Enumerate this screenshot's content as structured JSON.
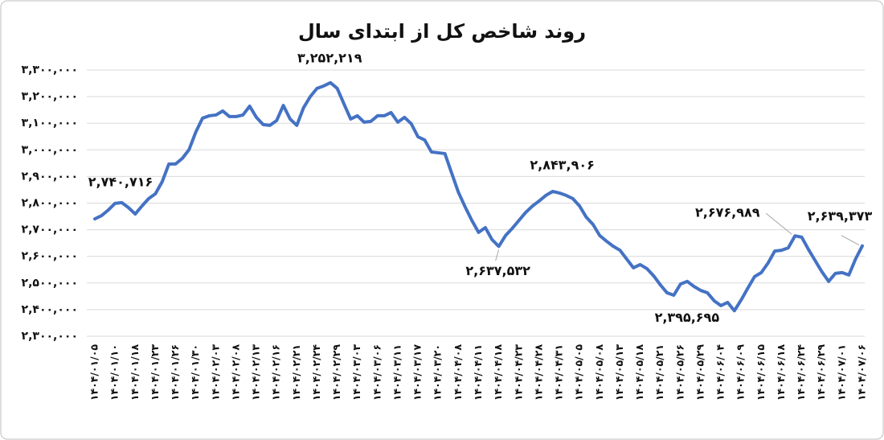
{
  "chart_data": {
    "type": "line",
    "title": "روند شاخص کل از ابتدای سال",
    "color": "#4472c4",
    "grid": true,
    "ylim": [
      2300000,
      3300000
    ],
    "yticks": [
      {
        "value": 2300000,
        "label": "۲,۳۰۰,۰۰۰"
      },
      {
        "value": 2400000,
        "label": "۲,۴۰۰,۰۰۰"
      },
      {
        "value": 2500000,
        "label": "۲,۵۰۰,۰۰۰"
      },
      {
        "value": 2600000,
        "label": "۲,۶۰۰,۰۰۰"
      },
      {
        "value": 2700000,
        "label": "۲,۷۰۰,۰۰۰"
      },
      {
        "value": 2800000,
        "label": "۲,۸۰۰,۰۰۰"
      },
      {
        "value": 2900000,
        "label": "۲,۹۰۰,۰۰۰"
      },
      {
        "value": 3000000,
        "label": "۳,۰۰۰,۰۰۰"
      },
      {
        "value": 3100000,
        "label": "۳,۱۰۰,۰۰۰"
      },
      {
        "value": 3200000,
        "label": "۳,۲۰۰,۰۰۰"
      },
      {
        "value": 3300000,
        "label": "۳,۳۰۰,۰۰۰"
      }
    ],
    "categories": [
      "۱۴۰۴/۰۱/۰۵",
      null,
      null,
      "۱۴۰۴/۰۱/۱۰",
      null,
      null,
      "۱۴۰۴/۰۱/۱۸",
      null,
      null,
      "۱۴۰۴/۰۱/۲۳",
      null,
      null,
      "۱۴۰۴/۰۱/۲۶",
      null,
      null,
      "۱۴۰۴/۰۱/۳۰",
      null,
      null,
      "۱۴۰۴/۰۲/۰۳",
      null,
      null,
      "۱۴۰۴/۰۲/۰۸",
      null,
      null,
      "۱۴۰۴/۰۲/۱۳",
      null,
      null,
      "۱۴۰۴/۰۲/۱۶",
      null,
      null,
      "۱۴۰۴/۰۲/۲۱",
      null,
      null,
      "۱۴۰۴/۰۲/۲۴",
      null,
      null,
      "۱۴۰۴/۰۲/۲۹",
      null,
      null,
      "۱۴۰۴/۰۳/۰۳",
      null,
      null,
      "۱۴۰۴/۰۳/۰۶",
      null,
      null,
      "۱۴۰۴/۰۳/۱۱",
      null,
      null,
      "۱۴۰۴/۰۳/۱۷",
      null,
      null,
      "۱۴۰۴/۰۳/۲۰",
      null,
      null,
      "۱۴۰۴/۰۴/۰۸",
      null,
      null,
      "۱۴۰۴/۰۴/۱۱",
      null,
      null,
      "۱۴۰۴/۰۴/۱۸",
      null,
      null,
      "۱۴۰۴/۰۴/۲۳",
      null,
      null,
      "۱۴۰۴/۰۴/۲۸",
      null,
      null,
      "۱۴۰۴/۰۴/۳۱",
      null,
      null,
      "۱۴۰۴/۰۵/۰۵",
      null,
      null,
      "۱۴۰۴/۰۵/۰۸",
      null,
      null,
      "۱۴۰۴/۰۵/۱۳",
      null,
      null,
      "۱۴۰۴/۰۵/۱۸",
      null,
      null,
      "۱۴۰۴/۰۵/۲۱",
      null,
      null,
      "۱۴۰۴/۰۵/۲۶",
      null,
      null,
      "۱۴۰۴/۰۵/۲۹",
      null,
      null,
      "۱۴۰۴/۰۶/۰۴",
      null,
      null,
      "۱۴۰۴/۰۶/۰۹",
      null,
      null,
      "۱۴۰۴/۰۶/۱۵",
      null,
      null,
      "۱۴۰۴/۰۶/۱۸",
      null,
      null,
      "۱۴۰۴/۰۶/۲۴",
      null,
      null,
      "۱۴۰۴/۰۶/۲۹",
      null,
      null,
      "۱۴۰۴/۰۷/۰۱",
      null,
      null,
      "۱۴۰۴/۰۷/۰۶"
    ],
    "values": [
      2740716,
      2753000,
      2774000,
      2799000,
      2802000,
      2783000,
      2759000,
      2789000,
      2817000,
      2835000,
      2880000,
      2947000,
      2947000,
      2968000,
      3001000,
      3067000,
      3119000,
      3128000,
      3131000,
      3146000,
      3125000,
      3125000,
      3131000,
      3164000,
      3122000,
      3095000,
      3092000,
      3110000,
      3167000,
      3116000,
      3092000,
      3158000,
      3200000,
      3231000,
      3240000,
      3252219,
      3231000,
      3173000,
      3116000,
      3128000,
      3104000,
      3107000,
      3128000,
      3128000,
      3140000,
      3104000,
      3122000,
      3098000,
      3049000,
      3037000,
      2992000,
      2989000,
      2986000,
      2913000,
      2841000,
      2786000,
      2735000,
      2690000,
      2708000,
      2663000,
      2637532,
      2678000,
      2705000,
      2735000,
      2765000,
      2789000,
      2808000,
      2829000,
      2843906,
      2838000,
      2829000,
      2817000,
      2789000,
      2747000,
      2720000,
      2678000,
      2657000,
      2638000,
      2623000,
      2590000,
      2557000,
      2569000,
      2554000,
      2527000,
      2493000,
      2463000,
      2454000,
      2496000,
      2506000,
      2487000,
      2472000,
      2463000,
      2433000,
      2415000,
      2427000,
      2395695,
      2436000,
      2481000,
      2524000,
      2539000,
      2575000,
      2620000,
      2623000,
      2632000,
      2676989,
      2672000,
      2626000,
      2584000,
      2542000,
      2506000,
      2536000,
      2539000,
      2530000,
      2590000,
      2639373
    ],
    "value_labels": [
      "۲,۷۴۰,۷۱۶",
      null,
      null,
      null,
      null,
      null,
      null,
      null,
      null,
      null,
      null,
      null,
      null,
      null,
      null,
      null,
      null,
      null,
      null,
      null,
      null,
      null,
      null,
      null,
      null,
      null,
      null,
      null,
      null,
      null,
      null,
      null,
      null,
      null,
      null,
      "۳,۲۵۲,۲۱۹",
      null,
      null,
      null,
      null,
      null,
      null,
      null,
      null,
      null,
      null,
      null,
      null,
      null,
      null,
      null,
      null,
      null,
      null,
      null,
      null,
      null,
      null,
      null,
      null,
      "۲,۶۳۷,۵۳۲",
      null,
      null,
      null,
      null,
      null,
      null,
      null,
      "۲,۸۴۳,۹۰۶",
      null,
      null,
      null,
      null,
      null,
      null,
      null,
      null,
      null,
      null,
      null,
      null,
      null,
      null,
      null,
      null,
      null,
      null,
      null,
      null,
      null,
      null,
      null,
      null,
      null,
      null,
      "۲,۳۹۵,۶۹۵",
      null,
      null,
      null,
      null,
      null,
      null,
      null,
      null,
      "۲,۶۷۶,۹۸۹",
      null,
      null,
      null,
      null,
      null,
      null,
      null,
      null,
      null,
      "۲,۶۳۹,۳۷۳"
    ]
  }
}
